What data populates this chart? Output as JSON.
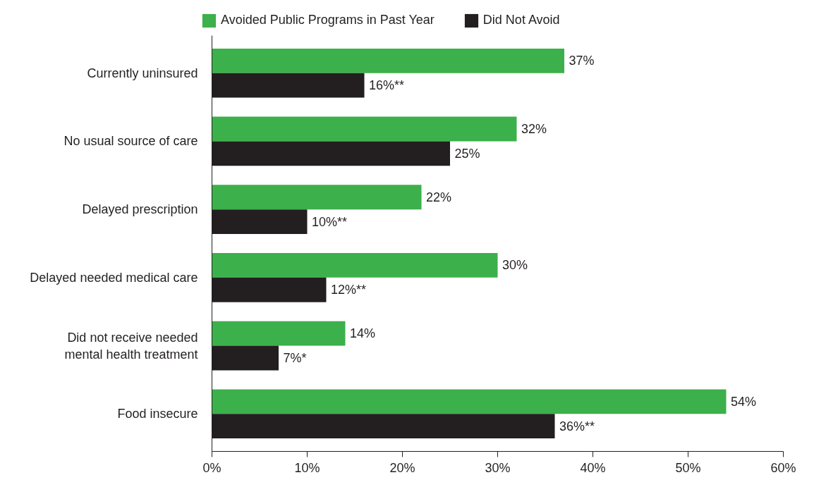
{
  "chart_data": {
    "type": "bar",
    "orientation": "horizontal",
    "categories": [
      "Currently uninsured",
      "No usual source of care",
      "Delayed prescription",
      "Delayed needed medical care",
      "Did not receive needed mental health treatment",
      "Food insecure"
    ],
    "series": [
      {
        "name": "Avoided Public Programs in Past Year",
        "color": "#3cb04a",
        "values": [
          37,
          32,
          22,
          30,
          14,
          54
        ],
        "value_labels": [
          "37%",
          "32%",
          "22%",
          "30%",
          "14%",
          "54%"
        ]
      },
      {
        "name": "Did Not Avoid",
        "color": "#231f20",
        "values": [
          16,
          25,
          10,
          12,
          7,
          36
        ],
        "value_labels": [
          "16%**",
          "25%",
          "10%**",
          "12%**",
          "7%*",
          "36%**"
        ]
      }
    ],
    "xlim": [
      0,
      60
    ],
    "xticks": [
      {
        "value": 0,
        "label": "0%"
      },
      {
        "value": 10,
        "label": "10%"
      },
      {
        "value": 20,
        "label": "20%"
      },
      {
        "value": 30,
        "label": "30%"
      },
      {
        "value": 40,
        "label": "40%"
      },
      {
        "value": 50,
        "label": "50%"
      },
      {
        "value": 60,
        "label": "60%"
      }
    ],
    "grid": false,
    "legend": "top"
  }
}
